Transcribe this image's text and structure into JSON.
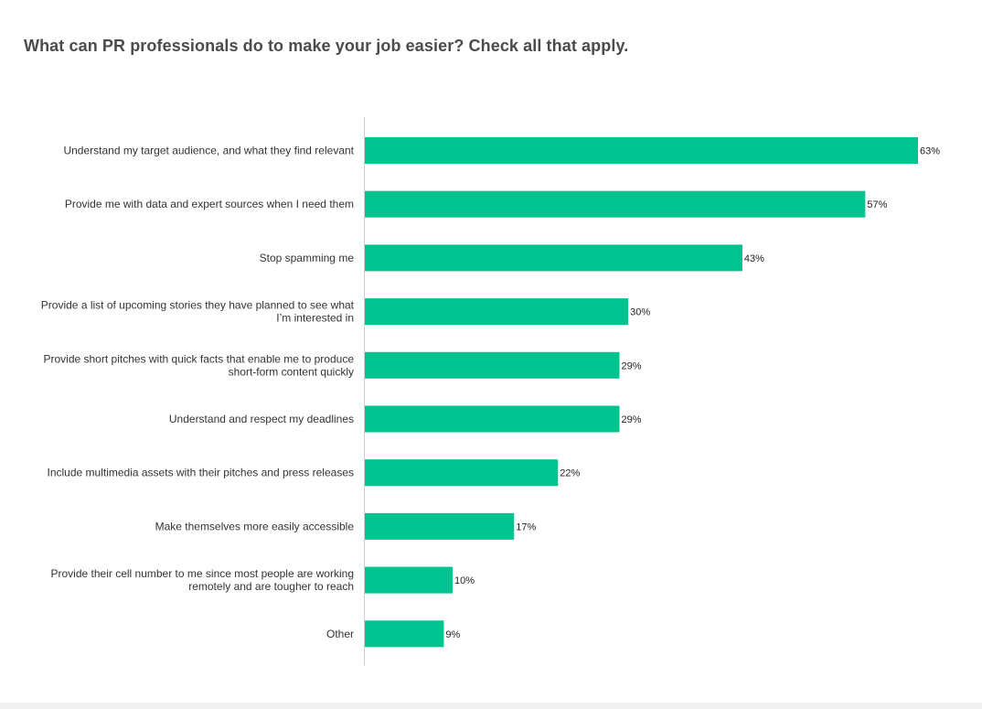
{
  "chart_data": {
    "type": "bar",
    "orientation": "horizontal",
    "title": "What can PR professionals do to make your job easier? Check all that apply.",
    "categories": [
      [
        "Understand my target audience, and what they find relevant"
      ],
      [
        "Provide me with data and expert sources when I need them"
      ],
      [
        "Stop spamming me"
      ],
      [
        "Provide a list of upcoming stories they have planned to see what",
        "I’m interested in"
      ],
      [
        "Provide short pitches with quick facts that enable me to produce",
        "short-form content quickly"
      ],
      [
        "Understand and respect my deadlines"
      ],
      [
        "Include multimedia assets with their pitches and press releases"
      ],
      [
        "Make themselves more easily accessible"
      ],
      [
        "Provide their cell number to me since most people are working",
        "remotely and are tougher to reach"
      ],
      [
        "Other"
      ]
    ],
    "values": [
      63,
      57,
      43,
      30,
      29,
      29,
      22,
      17,
      10,
      9
    ],
    "value_labels": [
      "63%",
      "57%",
      "43%",
      "30%",
      "29%",
      "29%",
      "22%",
      "17%",
      "10%",
      "9%"
    ],
    "xlim": [
      0,
      63
    ],
    "grid": false,
    "legend": "none",
    "bar_color": "#00c48f",
    "axis_color": "#cfcfcf"
  }
}
